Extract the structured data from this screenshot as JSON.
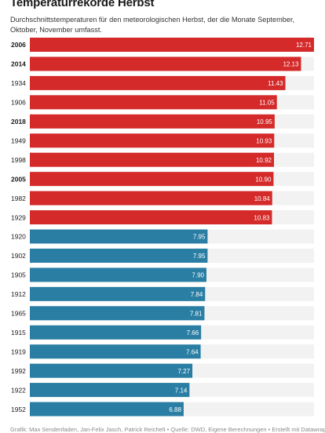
{
  "header": {
    "title": "Temperaturrekorde Herbst",
    "subtitle": "Durchschnittstemperaturen für den meteorologischen Herbst, der die Monate September, Oktober, November umfasst."
  },
  "footer": {
    "credit": "Grafik: Max Sendenfaden, Jan-Felix Jasch, Patrick Reichelt • Quelle: DWD, Eigene Berechnungen • Erstellt mit Datawrapper"
  },
  "colors": {
    "warm": "#d52a2a",
    "cold": "#2a7ea4",
    "track": "#f2f2f2",
    "value_text": "#ffffff"
  },
  "chart_data": {
    "type": "bar",
    "orientation": "horizontal",
    "xlim": [
      0,
      12.71
    ],
    "categories": [
      "2006",
      "2014",
      "1934",
      "1906",
      "2018",
      "1949",
      "1998",
      "2005",
      "1982",
      "1929",
      "1920",
      "1902",
      "1905",
      "1912",
      "1965",
      "1915",
      "1919",
      "1992",
      "1922",
      "1952"
    ],
    "values": [
      12.71,
      12.13,
      11.43,
      11.05,
      10.95,
      10.93,
      10.92,
      10.9,
      10.84,
      10.83,
      7.95,
      7.95,
      7.9,
      7.84,
      7.81,
      7.66,
      7.64,
      7.27,
      7.14,
      6.88
    ],
    "value_labels": [
      "12.71",
      "12.13",
      "11.43",
      "11.05",
      "10.95",
      "10.93",
      "10.92",
      "10.90",
      "10.84",
      "10.83",
      "7.95",
      "7.95",
      "7.90",
      "7.84",
      "7.81",
      "7.66",
      "7.64",
      "7.27",
      "7.14",
      "6.88"
    ],
    "bold_categories": [
      "2006",
      "2014",
      "2018",
      "2005"
    ],
    "series_group": [
      "warm",
      "warm",
      "warm",
      "warm",
      "warm",
      "warm",
      "warm",
      "warm",
      "warm",
      "warm",
      "cold",
      "cold",
      "cold",
      "cold",
      "cold",
      "cold",
      "cold",
      "cold",
      "cold",
      "cold"
    ]
  }
}
